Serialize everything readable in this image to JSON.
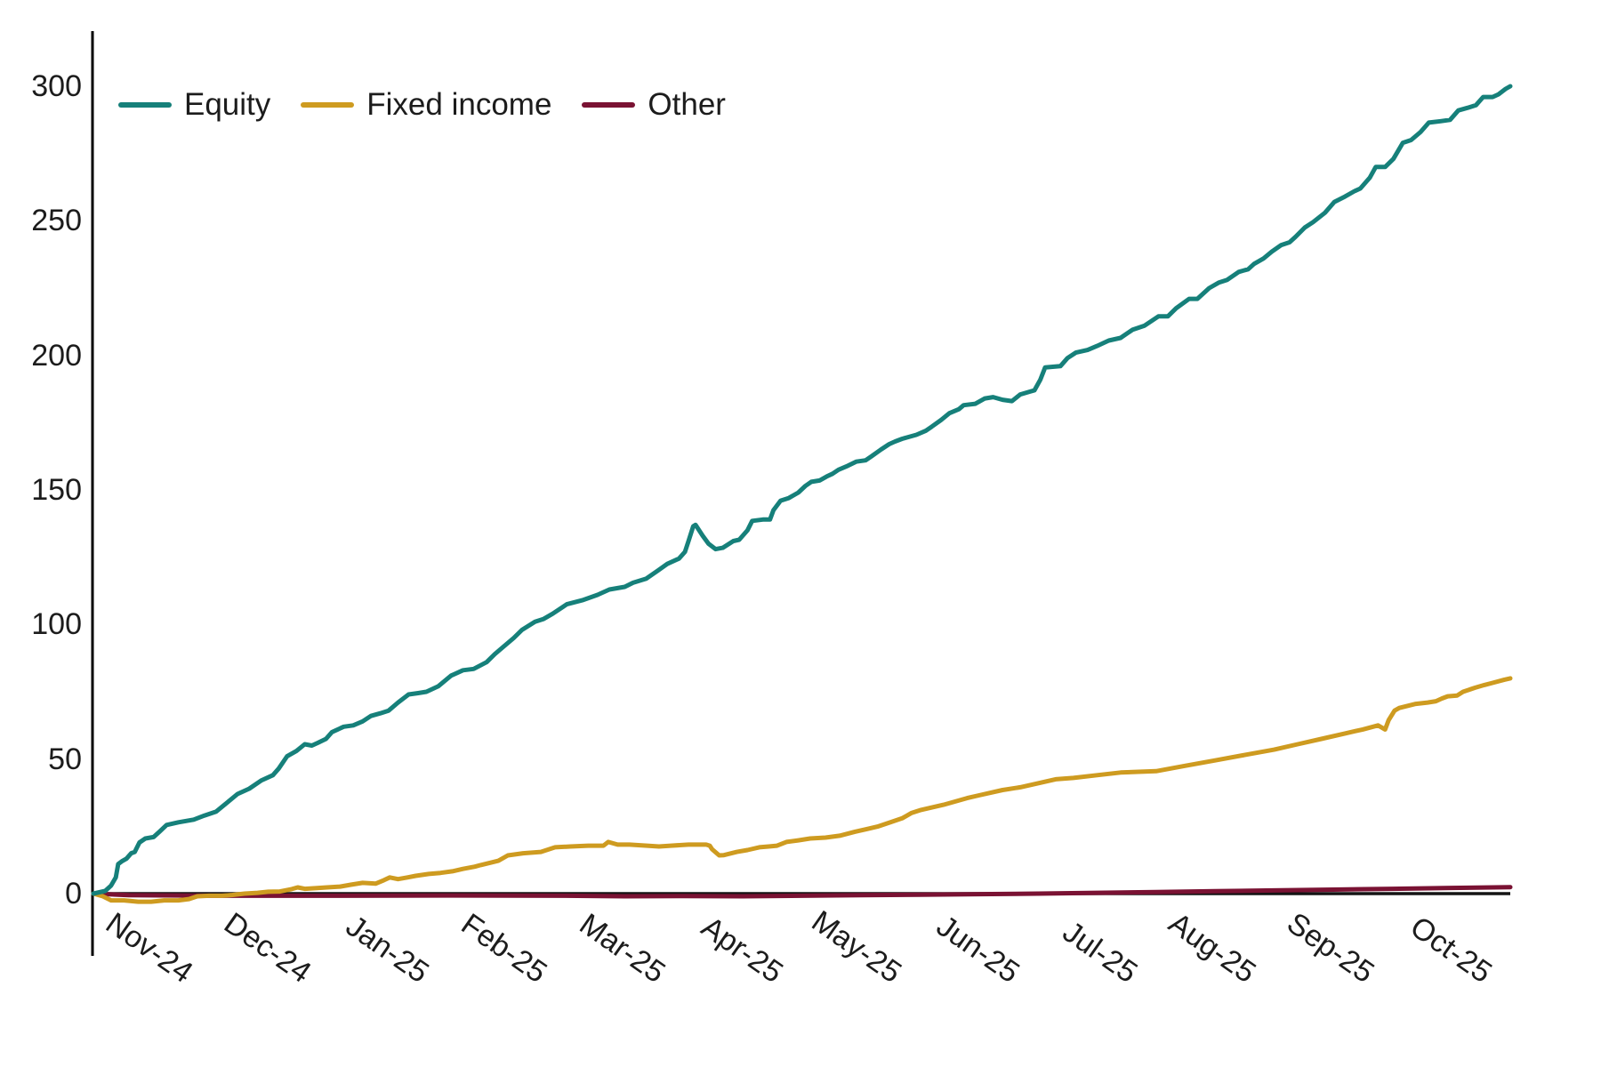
{
  "figure": {
    "background": "#ffffff"
  },
  "chart_data": {
    "type": "line",
    "title": "",
    "xlabel": "",
    "ylabel": "",
    "ylim": [
      -5,
      300
    ],
    "xlim_months": [
      "Nov-24",
      "Oct-25"
    ],
    "grid": false,
    "legend_position": "top-left",
    "y_ticks": [
      0,
      50,
      100,
      150,
      200,
      250,
      300
    ],
    "x_ticks": [
      {
        "label": "Nov-24",
        "t": 1
      },
      {
        "label": "Dec-24",
        "t": 2
      },
      {
        "label": "Jan-25",
        "t": 3
      },
      {
        "label": "Feb-25",
        "t": 4
      },
      {
        "label": "Mar-25",
        "t": 5
      },
      {
        "label": "Apr-25",
        "t": 6
      },
      {
        "label": "May-25",
        "t": 7
      },
      {
        "label": "Jun-25",
        "t": 8
      },
      {
        "label": "Jul-25",
        "t": 9
      },
      {
        "label": "Aug-25",
        "t": 10
      },
      {
        "label": "Sep-25",
        "t": 11
      },
      {
        "label": "Oct-25",
        "t": 12
      }
    ],
    "baseline": {
      "value": 0,
      "color": "#141414"
    },
    "axis_color": "#000000",
    "series": [
      {
        "name": "Equity",
        "color": "#16807A",
        "points": [
          [
            0,
            0
          ],
          [
            0.1,
            1
          ],
          [
            0.15,
            3
          ],
          [
            0.19,
            6
          ],
          [
            0.21,
            11
          ],
          [
            0.24,
            12
          ],
          [
            0.28,
            13
          ],
          [
            0.32,
            15
          ],
          [
            0.35,
            15.5
          ],
          [
            0.39,
            19
          ],
          [
            0.44,
            20.5
          ],
          [
            0.51,
            21
          ],
          [
            0.56,
            23
          ],
          [
            0.62,
            25.5
          ],
          [
            0.72,
            26.5
          ],
          [
            0.85,
            27.5
          ],
          [
            0.94,
            29
          ],
          [
            1.04,
            30.5
          ],
          [
            1.11,
            33
          ],
          [
            1.22,
            37
          ],
          [
            1.32,
            39
          ],
          [
            1.42,
            42
          ],
          [
            1.52,
            44
          ],
          [
            1.57,
            46.5
          ],
          [
            1.64,
            51
          ],
          [
            1.72,
            53
          ],
          [
            1.79,
            55.5
          ],
          [
            1.85,
            55
          ],
          [
            1.9,
            56
          ],
          [
            1.97,
            57.5
          ],
          [
            2.02,
            60
          ],
          [
            2.12,
            62
          ],
          [
            2.2,
            62.5
          ],
          [
            2.28,
            64
          ],
          [
            2.35,
            66
          ],
          [
            2.43,
            67
          ],
          [
            2.5,
            68
          ],
          [
            2.58,
            71
          ],
          [
            2.67,
            74
          ],
          [
            2.75,
            74.5
          ],
          [
            2.82,
            75
          ],
          [
            2.92,
            77
          ],
          [
            3.03,
            81
          ],
          [
            3.13,
            83
          ],
          [
            3.22,
            83.5
          ],
          [
            3.33,
            86
          ],
          [
            3.4,
            89
          ],
          [
            3.48,
            92
          ],
          [
            3.56,
            95
          ],
          [
            3.63,
            98
          ],
          [
            3.74,
            101
          ],
          [
            3.81,
            102
          ],
          [
            3.89,
            104
          ],
          [
            4.01,
            107.5
          ],
          [
            4.14,
            109
          ],
          [
            4.27,
            111
          ],
          [
            4.37,
            113
          ],
          [
            4.5,
            114
          ],
          [
            4.57,
            115.5
          ],
          [
            4.68,
            117
          ],
          [
            4.78,
            120
          ],
          [
            4.86,
            122.5
          ],
          [
            4.96,
            124.5
          ],
          [
            5.01,
            127
          ],
          [
            5.04,
            131
          ],
          [
            5.08,
            136.5
          ],
          [
            5.1,
            137
          ],
          [
            5.16,
            133
          ],
          [
            5.21,
            130
          ],
          [
            5.27,
            128
          ],
          [
            5.33,
            128.5
          ],
          [
            5.42,
            131
          ],
          [
            5.47,
            131.5
          ],
          [
            5.54,
            135
          ],
          [
            5.58,
            138.5
          ],
          [
            5.67,
            139
          ],
          [
            5.73,
            139
          ],
          [
            5.76,
            142.5
          ],
          [
            5.82,
            146
          ],
          [
            5.89,
            147
          ],
          [
            5.97,
            149
          ],
          [
            6.03,
            151.5
          ],
          [
            6.08,
            153
          ],
          [
            6.15,
            153.5
          ],
          [
            6.21,
            155
          ],
          [
            6.26,
            156
          ],
          [
            6.31,
            157.5
          ],
          [
            6.39,
            159
          ],
          [
            6.46,
            160.5
          ],
          [
            6.54,
            161
          ],
          [
            6.59,
            162.5
          ],
          [
            6.67,
            165
          ],
          [
            6.74,
            167
          ],
          [
            6.79,
            168
          ],
          [
            6.85,
            169
          ],
          [
            6.89,
            169.5
          ],
          [
            6.97,
            170.5
          ],
          [
            7.05,
            172
          ],
          [
            7.1,
            173.5
          ],
          [
            7.18,
            176
          ],
          [
            7.25,
            178.5
          ],
          [
            7.33,
            180
          ],
          [
            7.37,
            181.5
          ],
          [
            7.47,
            182
          ],
          [
            7.55,
            184
          ],
          [
            7.62,
            184.5
          ],
          [
            7.7,
            183.5
          ],
          [
            7.78,
            183
          ],
          [
            7.85,
            185.5
          ],
          [
            7.93,
            186.5
          ],
          [
            7.97,
            187
          ],
          [
            8.02,
            191
          ],
          [
            8.06,
            195.5
          ],
          [
            8.19,
            196
          ],
          [
            8.25,
            199
          ],
          [
            8.32,
            201
          ],
          [
            8.42,
            202
          ],
          [
            8.5,
            203.5
          ],
          [
            8.6,
            205.5
          ],
          [
            8.7,
            206.5
          ],
          [
            8.8,
            209.5
          ],
          [
            8.9,
            211
          ],
          [
            9.02,
            214.5
          ],
          [
            9.1,
            214.5
          ],
          [
            9.17,
            217.5
          ],
          [
            9.28,
            221
          ],
          [
            9.35,
            221
          ],
          [
            9.45,
            225
          ],
          [
            9.53,
            227
          ],
          [
            9.6,
            228
          ],
          [
            9.7,
            231
          ],
          [
            9.78,
            232
          ],
          [
            9.83,
            234
          ],
          [
            9.91,
            236
          ],
          [
            9.98,
            238.5
          ],
          [
            10.06,
            241
          ],
          [
            10.13,
            242
          ],
          [
            10.18,
            244
          ],
          [
            10.26,
            247.5
          ],
          [
            10.33,
            249.5
          ],
          [
            10.43,
            253
          ],
          [
            10.51,
            257
          ],
          [
            10.6,
            259
          ],
          [
            10.68,
            261
          ],
          [
            10.73,
            262
          ],
          [
            10.81,
            266
          ],
          [
            10.86,
            270
          ],
          [
            10.94,
            270
          ],
          [
            11.01,
            273
          ],
          [
            11.09,
            279
          ],
          [
            11.16,
            280
          ],
          [
            11.24,
            283
          ],
          [
            11.31,
            286.5
          ],
          [
            11.41,
            287
          ],
          [
            11.49,
            287.5
          ],
          [
            11.56,
            291
          ],
          [
            11.64,
            292
          ],
          [
            11.71,
            293
          ],
          [
            11.77,
            296
          ],
          [
            11.85,
            296
          ],
          [
            11.9,
            297
          ],
          [
            11.96,
            299
          ],
          [
            12,
            300
          ]
        ]
      },
      {
        "name": "Fixed income",
        "color": "#CE9B20",
        "points": [
          [
            0,
            0
          ],
          [
            0.08,
            -1
          ],
          [
            0.15,
            -2.5
          ],
          [
            0.26,
            -2.5
          ],
          [
            0.38,
            -3
          ],
          [
            0.49,
            -3
          ],
          [
            0.6,
            -2.5
          ],
          [
            0.72,
            -2.5
          ],
          [
            0.81,
            -2
          ],
          [
            0.88,
            -1
          ],
          [
            0.98,
            -0.8
          ],
          [
            1.09,
            -0.8
          ],
          [
            1.18,
            -0.5
          ],
          [
            1.28,
            0
          ],
          [
            1.39,
            0.3
          ],
          [
            1.48,
            0.7
          ],
          [
            1.58,
            0.8
          ],
          [
            1.68,
            1.7
          ],
          [
            1.73,
            2.3
          ],
          [
            1.79,
            1.8
          ],
          [
            1.88,
            2
          ],
          [
            1.98,
            2.3
          ],
          [
            2.09,
            2.6
          ],
          [
            2.18,
            3.3
          ],
          [
            2.28,
            4
          ],
          [
            2.39,
            3.7
          ],
          [
            2.46,
            5
          ],
          [
            2.51,
            6
          ],
          [
            2.58,
            5.4
          ],
          [
            2.66,
            6
          ],
          [
            2.73,
            6.6
          ],
          [
            2.84,
            7.3
          ],
          [
            2.94,
            7.7
          ],
          [
            3.04,
            8.3
          ],
          [
            3.13,
            9.2
          ],
          [
            3.23,
            10
          ],
          [
            3.28,
            10.6
          ],
          [
            3.43,
            12.2
          ],
          [
            3.51,
            14.2
          ],
          [
            3.64,
            15
          ],
          [
            3.79,
            15.5
          ],
          [
            3.91,
            17.2
          ],
          [
            4.04,
            17.5
          ],
          [
            4.19,
            17.8
          ],
          [
            4.32,
            17.8
          ],
          [
            4.36,
            19.2
          ],
          [
            4.44,
            18.2
          ],
          [
            4.54,
            18.2
          ],
          [
            4.69,
            17.8
          ],
          [
            4.79,
            17.5
          ],
          [
            4.89,
            17.8
          ],
          [
            5.04,
            18.2
          ],
          [
            5.19,
            18.2
          ],
          [
            5.22,
            17.8
          ],
          [
            5.24,
            16.5
          ],
          [
            5.3,
            14.2
          ],
          [
            5.34,
            14.3
          ],
          [
            5.45,
            15.5
          ],
          [
            5.54,
            16.2
          ],
          [
            5.64,
            17.2
          ],
          [
            5.72,
            17.5
          ],
          [
            5.79,
            17.8
          ],
          [
            5.87,
            19.2
          ],
          [
            5.97,
            19.8
          ],
          [
            6.07,
            20.5
          ],
          [
            6.2,
            20.8
          ],
          [
            6.32,
            21.5
          ],
          [
            6.45,
            23
          ],
          [
            6.55,
            24
          ],
          [
            6.65,
            25
          ],
          [
            6.75,
            26.5
          ],
          [
            6.85,
            28
          ],
          [
            6.93,
            30
          ],
          [
            7,
            31
          ],
          [
            7.2,
            33
          ],
          [
            7.4,
            35.5
          ],
          [
            7.5,
            36.5
          ],
          [
            7.7,
            38.5
          ],
          [
            7.85,
            39.5
          ],
          [
            8,
            41
          ],
          [
            8.15,
            42.5
          ],
          [
            8.3,
            43
          ],
          [
            8.5,
            44
          ],
          [
            8.7,
            45
          ],
          [
            9,
            45.5
          ],
          [
            9.25,
            47.5
          ],
          [
            9.5,
            49.5
          ],
          [
            9.75,
            51.5
          ],
          [
            10,
            53.5
          ],
          [
            10.2,
            55.5
          ],
          [
            10.4,
            57.5
          ],
          [
            10.6,
            59.5
          ],
          [
            10.75,
            61
          ],
          [
            10.88,
            62.5
          ],
          [
            10.94,
            61
          ],
          [
            10.97,
            64.5
          ],
          [
            11.02,
            68
          ],
          [
            11.06,
            69
          ],
          [
            11.2,
            70.5
          ],
          [
            11.3,
            71
          ],
          [
            11.37,
            71.5
          ],
          [
            11.42,
            72.5
          ],
          [
            11.47,
            73.3
          ],
          [
            11.55,
            73.6
          ],
          [
            11.6,
            75
          ],
          [
            11.7,
            76.5
          ],
          [
            11.78,
            77.5
          ],
          [
            11.85,
            78.3
          ],
          [
            11.95,
            79.5
          ],
          [
            12,
            80
          ]
        ]
      },
      {
        "name": "Other",
        "color": "#7A1233",
        "points": [
          [
            0,
            0
          ],
          [
            0.3,
            -0.6
          ],
          [
            1,
            -0.8
          ],
          [
            2,
            -0.8
          ],
          [
            3,
            -0.7
          ],
          [
            4,
            -0.8
          ],
          [
            4.5,
            -1
          ],
          [
            5,
            -0.9
          ],
          [
            5.5,
            -1
          ],
          [
            6,
            -0.8
          ],
          [
            6.5,
            -0.6
          ],
          [
            7,
            -0.4
          ],
          [
            7.5,
            -0.2
          ],
          [
            8,
            0
          ],
          [
            8.5,
            0.3
          ],
          [
            9,
            0.6
          ],
          [
            9.5,
            0.9
          ],
          [
            10,
            1.2
          ],
          [
            10.5,
            1.5
          ],
          [
            11,
            1.8
          ],
          [
            11.5,
            2.1
          ],
          [
            12,
            2.4
          ]
        ]
      }
    ]
  }
}
